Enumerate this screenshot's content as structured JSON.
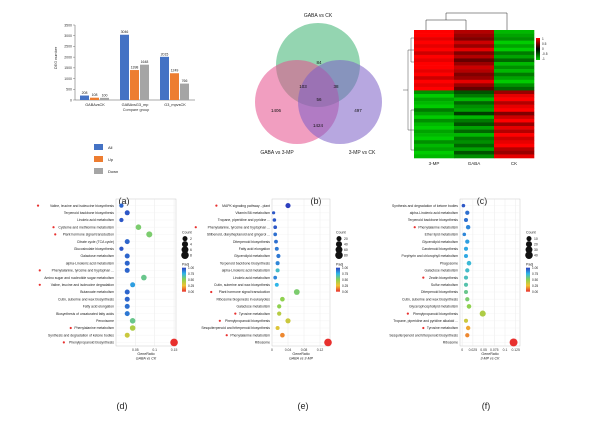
{
  "panel_labels": [
    "(a)",
    "(b)",
    "(c)",
    "(d)",
    "(e)",
    "(f)"
  ],
  "colors": {
    "all": "#4472c4",
    "up": "#ed7d31",
    "down": "#a5a5a5",
    "venn_top": "#3cb371",
    "venn_left": "#e64f8c",
    "venn_right": "#7b5fc7",
    "heat_high": "#ff0000",
    "heat_mid": "#000000",
    "heat_low": "#00cc00"
  },
  "chart_data": [
    {
      "type": "bar",
      "panel": "(a)",
      "ylabel": "DEG number",
      "xlabel": "Compare group",
      "ylim": [
        0,
        3500
      ],
      "yticks": [
        0,
        500,
        1000,
        1500,
        2000,
        2500,
        3000,
        3500
      ],
      "categories": [
        "GABAvsCK",
        "GABAvsG3_mp",
        "G3_mpvsCK"
      ],
      "series": [
        {
          "name": "All",
          "values": [
            208,
            3046,
            2015
          ],
          "labels": [
            "208",
            "3046",
            "2015"
          ]
        },
        {
          "name": "Up",
          "values": [
            108,
            1398,
            1249
          ],
          "labels": [
            "108",
            "1398",
            "1249"
          ]
        },
        {
          "name": "Down",
          "values": [
            100,
            1648,
            766
          ],
          "labels": [
            "100",
            "1648",
            "766"
          ]
        }
      ],
      "legend": "below"
    },
    {
      "type": "venn",
      "panel": "(b)",
      "sets": [
        "GABA vs CK",
        "GABA vs 3-MP",
        "3-MP vs CK"
      ],
      "regions": [
        {
          "label": "84"
        },
        {
          "label": "1406"
        },
        {
          "label": "497"
        },
        {
          "label": "103"
        },
        {
          "label": "38"
        },
        {
          "label": "1424"
        },
        {
          "label": "56"
        }
      ]
    },
    {
      "type": "heatmap",
      "panel": "(c)",
      "columns": [
        "3-MP",
        "GABA",
        "CK"
      ],
      "scale_ticks": [
        "1",
        "0.5",
        "0",
        "-0.5",
        "-1"
      ],
      "values": [
        [
          1,
          0.7,
          -0.9
        ],
        [
          1,
          0.6,
          -0.8
        ],
        [
          0.9,
          0.5,
          -0.7
        ],
        [
          1,
          0.8,
          -1
        ],
        [
          0.9,
          0.6,
          -0.8
        ],
        [
          1,
          0.9,
          -1
        ],
        [
          0.8,
          0.5,
          -0.6
        ],
        [
          1,
          0.7,
          -0.8
        ],
        [
          0.9,
          0.4,
          -0.5
        ],
        [
          1,
          0.6,
          -0.9
        ],
        [
          1,
          0.8,
          -0.7
        ],
        [
          0.9,
          0.7,
          -0.9
        ],
        [
          1,
          0.5,
          -0.6
        ],
        [
          0.8,
          0.6,
          -0.8
        ],
        [
          1,
          0.9,
          -1
        ],
        [
          0.9,
          0.6,
          -0.7
        ],
        [
          1,
          0.4,
          -0.5
        ],
        [
          -0.7,
          -0.4,
          0.6
        ],
        [
          -1,
          -0.6,
          0.9
        ],
        [
          -0.8,
          -0.9,
          1
        ],
        [
          -0.9,
          -0.5,
          0.7
        ],
        [
          -1,
          -0.7,
          0.9
        ],
        [
          -0.6,
          -0.8,
          1
        ],
        [
          -0.8,
          -0.3,
          0.5
        ],
        [
          -1,
          -0.9,
          0.8
        ],
        [
          -0.7,
          -0.6,
          1
        ],
        [
          -0.9,
          -0.4,
          0.6
        ],
        [
          -1,
          -0.8,
          0.9
        ],
        [
          -0.8,
          -0.5,
          0.7
        ],
        [
          -0.9,
          -0.9,
          1
        ],
        [
          -1,
          -0.6,
          0.8
        ],
        [
          -0.7,
          -0.7,
          0.9
        ],
        [
          -0.9,
          -0.5,
          1
        ],
        [
          -0.8,
          -0.8,
          0.7
        ],
        [
          -1,
          -0.4,
          0.6
        ],
        [
          -0.9,
          -0.7,
          0.9
        ]
      ]
    },
    {
      "type": "scatter",
      "panel": "(d)",
      "xlabel": "GeneRatio",
      "subtitle": "GABA vs CK",
      "xlim": [
        0,
        0.155
      ],
      "xticks": [
        0.05,
        0.1,
        0.15
      ],
      "size_legend": {
        "title": "Count",
        "values": [
          2,
          4,
          6,
          8
        ]
      },
      "color_legend": {
        "title": "Padj",
        "ticks": [
          1.0,
          0.75,
          0.5,
          0.25,
          0.0
        ]
      },
      "points": [
        {
          "term": "Valine, leucine and isoleucine biosynthesis",
          "x": 0.014,
          "count": 1,
          "padj": 0.92,
          "flag": true
        },
        {
          "term": "Terpenoid backbone biosynthesis",
          "x": 0.029,
          "count": 2,
          "padj": 0.95,
          "flag": false
        },
        {
          "term": "Linoleic acid metabolism",
          "x": 0.014,
          "count": 1,
          "padj": 0.95,
          "flag": false
        },
        {
          "term": "Cysteine and methionine metabolism",
          "x": 0.058,
          "count": 3,
          "padj": 0.55,
          "flag": true
        },
        {
          "term": "Plant hormone signal transduction",
          "x": 0.086,
          "count": 4,
          "padj": 0.55,
          "flag": true
        },
        {
          "term": "Citrate cycle (TCA cycle)",
          "x": 0.029,
          "count": 2,
          "padj": 0.92,
          "flag": false
        },
        {
          "term": "Glucosinolate biosynthesis",
          "x": 0.014,
          "count": 1,
          "padj": 0.95,
          "flag": false
        },
        {
          "term": "Galactose metabolism",
          "x": 0.029,
          "count": 2,
          "padj": 0.92,
          "flag": false
        },
        {
          "term": "alpha-Linolenic acid metabolism",
          "x": 0.029,
          "count": 2,
          "padj": 0.92,
          "flag": false
        },
        {
          "term": "Phenylalanine, tyrosine and tryptophan ...",
          "x": 0.029,
          "count": 2,
          "padj": 0.92,
          "flag": true
        },
        {
          "term": "Amino sugar and nucleotide sugar metabolism",
          "x": 0.072,
          "count": 3,
          "padj": 0.6,
          "flag": false
        },
        {
          "term": "Valine, leucine and isoleucine degradation",
          "x": 0.043,
          "count": 2,
          "padj": 0.8,
          "flag": true
        },
        {
          "term": "Butanoate metabolism",
          "x": 0.029,
          "count": 2,
          "padj": 0.92,
          "flag": false
        },
        {
          "term": "Cutin, suberine and wax biosynthesis",
          "x": 0.029,
          "count": 2,
          "padj": 0.92,
          "flag": false
        },
        {
          "term": "Fatty acid elongation",
          "x": 0.029,
          "count": 2,
          "padj": 0.9,
          "flag": false
        },
        {
          "term": "Biosynthesis of unsaturated fatty acids",
          "x": 0.029,
          "count": 2,
          "padj": 0.88,
          "flag": false
        },
        {
          "term": "Peroxisome",
          "x": 0.043,
          "count": 3,
          "padj": 0.6,
          "flag": false
        },
        {
          "term": "Phenylalanine metabolism",
          "x": 0.043,
          "count": 3,
          "padj": 0.42,
          "flag": true
        },
        {
          "term": "Synthesis and degradation of ketone bodies",
          "x": 0.029,
          "count": 2,
          "padj": 0.35,
          "flag": false
        },
        {
          "term": "Phenylpropanoid biosynthesis",
          "x": 0.15,
          "count": 8,
          "padj": 0.0,
          "flag": true
        }
      ]
    },
    {
      "type": "scatter",
      "panel": "(e)",
      "xlabel": "GeneRatio",
      "subtitle": "GABA vs 3-MP",
      "xlim": [
        0,
        0.145
      ],
      "xticks": [
        0.0,
        0.04,
        0.08,
        0.12
      ],
      "size_legend": {
        "title": "Count",
        "values": [
          20,
          40,
          60,
          80
        ]
      },
      "color_legend": {
        "title": "Padj",
        "ticks": [
          1.0,
          0.75,
          0.5,
          0.25,
          0.0
        ]
      },
      "points": [
        {
          "term": "MAPK signaling pathway - plant",
          "x": 0.04,
          "count": 22,
          "padj": 1.0,
          "flag": true
        },
        {
          "term": "Vitamin B6 metabolism",
          "x": 0.004,
          "count": 2,
          "padj": 0.95,
          "flag": false
        },
        {
          "term": "Tropane, piperidine and pyridine ...",
          "x": 0.006,
          "count": 4,
          "padj": 0.95,
          "flag": false
        },
        {
          "term": "Phenylalanine, tyrosine and tryptophan ...",
          "x": 0.008,
          "count": 5,
          "padj": 0.95,
          "flag": true
        },
        {
          "term": "Stilbenoid, diarylheptanoid and gingerol ...",
          "x": 0.008,
          "count": 5,
          "padj": 0.9,
          "flag": false
        },
        {
          "term": "Diterpenoid biosynthesis",
          "x": 0.01,
          "count": 6,
          "padj": 0.9,
          "flag": false
        },
        {
          "term": "Fatty acid elongation",
          "x": 0.012,
          "count": 7,
          "padj": 0.88,
          "flag": false
        },
        {
          "term": "Glycerolipid metabolism",
          "x": 0.016,
          "count": 9,
          "padj": 0.88,
          "flag": false
        },
        {
          "term": "Terpenoid backbone biosynthesis",
          "x": 0.014,
          "count": 8,
          "padj": 0.85,
          "flag": false
        },
        {
          "term": "alpha-Linolenic acid metabolism",
          "x": 0.014,
          "count": 8,
          "padj": 0.7,
          "flag": false
        },
        {
          "term": "Linoleic acid metabolism",
          "x": 0.008,
          "count": 5,
          "padj": 0.85,
          "flag": false
        },
        {
          "term": "Cutin, suberine and wax biosynthesis",
          "x": 0.012,
          "count": 7,
          "padj": 0.75,
          "flag": false
        },
        {
          "term": "Plant hormone signal transduction",
          "x": 0.062,
          "count": 35,
          "padj": 0.55,
          "flag": true
        },
        {
          "term": "Ribosome biogenesis in eukaryotes",
          "x": 0.026,
          "count": 15,
          "padj": 0.5,
          "flag": false
        },
        {
          "term": "Galactose metabolism",
          "x": 0.018,
          "count": 10,
          "padj": 0.5,
          "flag": false
        },
        {
          "term": "Tyrosine metabolism",
          "x": 0.018,
          "count": 10,
          "padj": 0.4,
          "flag": true
        },
        {
          "term": "Phenylpropanoid biosynthesis",
          "x": 0.04,
          "count": 23,
          "padj": 0.35,
          "flag": true
        },
        {
          "term": "Sesquiterpenoid and triterpenoid biosynthesis",
          "x": 0.014,
          "count": 8,
          "padj": 0.3,
          "flag": false
        },
        {
          "term": "Phenylalanine metabolism",
          "x": 0.026,
          "count": 15,
          "padj": 0.15,
          "flag": true
        },
        {
          "term": "Ribosome",
          "x": 0.14,
          "count": 80,
          "padj": 0.0,
          "flag": false
        }
      ]
    },
    {
      "type": "scatter",
      "panel": "(f)",
      "xlabel": "GeneRatio",
      "subtitle": "3-MP vs CK",
      "xlim": [
        -0.005,
        0.135
      ],
      "xticks": [
        0.0,
        0.025,
        0.05,
        0.075,
        0.1,
        0.125
      ],
      "size_legend": {
        "title": "Count",
        "values": [
          10,
          20,
          30,
          40
        ]
      },
      "color_legend": {
        "title": "Padj",
        "ticks": [
          1.0,
          0.75,
          0.5,
          0.25,
          0.0
        ]
      },
      "points": [
        {
          "term": "Synthesis and degradation of ketone bodies",
          "x": 0.003,
          "count": 2,
          "padj": 0.95,
          "flag": false
        },
        {
          "term": "alpha-Linolenic acid metabolism",
          "x": 0.012,
          "count": 5,
          "padj": 0.9,
          "flag": false
        },
        {
          "term": "Terpenoid backbone biosynthesis",
          "x": 0.009,
          "count": 4,
          "padj": 0.9,
          "flag": false
        },
        {
          "term": "Phenylalanine metabolism",
          "x": 0.014,
          "count": 6,
          "padj": 0.85,
          "flag": true
        },
        {
          "term": "Ether lipid metabolism",
          "x": 0.005,
          "count": 2,
          "padj": 0.85,
          "flag": false
        },
        {
          "term": "Glycerolipid metabolism",
          "x": 0.012,
          "count": 5,
          "padj": 0.8,
          "flag": false
        },
        {
          "term": "Carotenoid biosynthesis",
          "x": 0.009,
          "count": 4,
          "padj": 0.78,
          "flag": false
        },
        {
          "term": "Porphyrin and chlorophyll metabolism",
          "x": 0.009,
          "count": 4,
          "padj": 0.78,
          "flag": false
        },
        {
          "term": "Phagosome",
          "x": 0.016,
          "count": 7,
          "padj": 0.72,
          "flag": false
        },
        {
          "term": "Galactose metabolism",
          "x": 0.012,
          "count": 5,
          "padj": 0.7,
          "flag": false
        },
        {
          "term": "Zeatin biosynthesis",
          "x": 0.009,
          "count": 4,
          "padj": 0.68,
          "flag": true
        },
        {
          "term": "Sulfur metabolism",
          "x": 0.009,
          "count": 4,
          "padj": 0.65,
          "flag": false
        },
        {
          "term": "Diterpenoid biosynthesis",
          "x": 0.009,
          "count": 4,
          "padj": 0.6,
          "flag": false
        },
        {
          "term": "Cutin, suberine and wax biosynthesis",
          "x": 0.012,
          "count": 5,
          "padj": 0.55,
          "flag": false
        },
        {
          "term": "Glycerophospholipid metabolism",
          "x": 0.016,
          "count": 7,
          "padj": 0.5,
          "flag": false
        },
        {
          "term": "Phenylpropanoid biosynthesis",
          "x": 0.048,
          "count": 20,
          "padj": 0.42,
          "flag": true
        },
        {
          "term": "Tropane, piperidine and pyridine alkaloid ...",
          "x": 0.009,
          "count": 4,
          "padj": 0.35,
          "flag": false
        },
        {
          "term": "Tyrosine metabolism",
          "x": 0.014,
          "count": 6,
          "padj": 0.2,
          "flag": true
        },
        {
          "term": "Sesquiterpenoid and triterpenoid biosynthesis",
          "x": 0.012,
          "count": 5,
          "padj": 0.15,
          "flag": false
        },
        {
          "term": "Ribosome",
          "x": 0.12,
          "count": 45,
          "padj": 0.0,
          "flag": false
        }
      ]
    }
  ]
}
